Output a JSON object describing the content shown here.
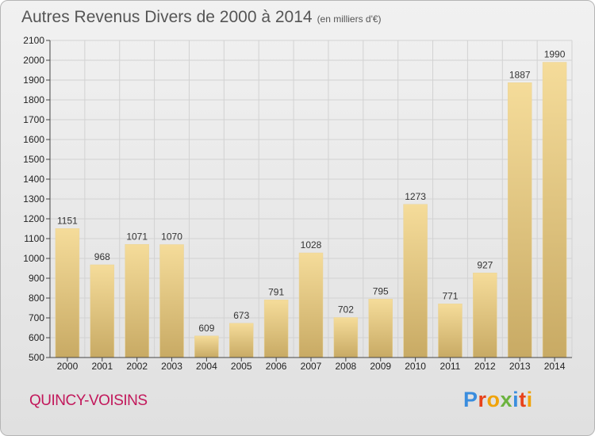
{
  "title": "Autres Revenus Divers de 2000 à 2014",
  "subtitle": "(en milliers d'€)",
  "location": "QUINCY-VOISINS",
  "logo": [
    "P",
    "r",
    "o",
    "x",
    "i",
    "t",
    "i"
  ],
  "logo_colors": [
    "#3a8dde",
    "#e8421a",
    "#f0a30a",
    "#6cb33f",
    "#3a8dde",
    "#e8421a",
    "#f0a30a"
  ],
  "chart_data": {
    "type": "bar",
    "categories": [
      "2000",
      "2001",
      "2002",
      "2003",
      "2004",
      "2005",
      "2006",
      "2007",
      "2008",
      "2009",
      "2010",
      "2011",
      "2012",
      "2013",
      "2014"
    ],
    "values": [
      1151,
      968,
      1071,
      1070,
      609,
      673,
      791,
      1028,
      702,
      795,
      1273,
      771,
      927,
      1887,
      1990
    ],
    "ylim": [
      500,
      2100
    ],
    "yticks": [
      500,
      600,
      700,
      800,
      900,
      1000,
      1100,
      1200,
      1300,
      1400,
      1500,
      1600,
      1700,
      1800,
      1900,
      2000,
      2100
    ],
    "grid": true,
    "bar_color_top": "#f5dc9a",
    "bar_color_bottom": "#c8aa64"
  }
}
